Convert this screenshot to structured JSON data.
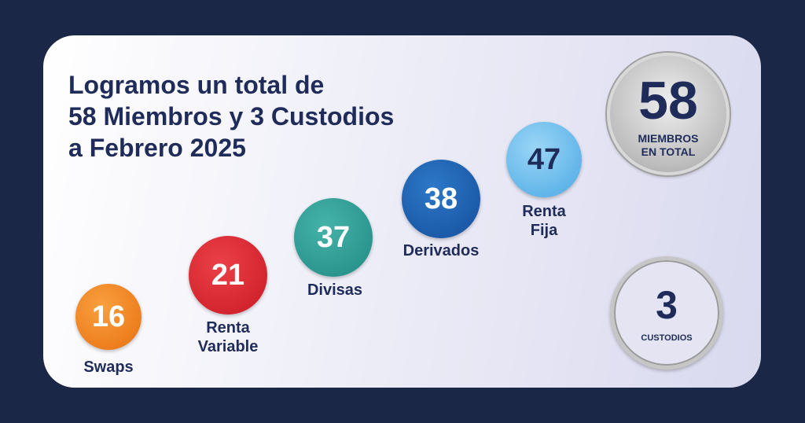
{
  "title": [
    "Logramos un total de",
    "58 Miembros y 3 Custodios",
    "a Febrero 2025"
  ],
  "segments": [
    {
      "value": "16",
      "label": [
        "Swaps"
      ],
      "color": "#f07d1a"
    },
    {
      "value": "21",
      "label": [
        "Renta",
        "Variable"
      ],
      "color": "#d8202a"
    },
    {
      "value": "37",
      "label": [
        "Divisas"
      ],
      "color": "#2a9a92"
    },
    {
      "value": "38",
      "label": [
        "Derivados"
      ],
      "color": "#1b5fb0"
    },
    {
      "value": "47",
      "label": [
        "Renta",
        "Fija"
      ],
      "color": "#5eb8ec"
    }
  ],
  "total": {
    "value": "58",
    "label": [
      "MIEMBROS",
      "EN TOTAL"
    ]
  },
  "custodians": {
    "value": "3",
    "label": "CUSTODIOS"
  },
  "colors": {
    "background": "#1b2747",
    "text": "#1f2c5a"
  }
}
